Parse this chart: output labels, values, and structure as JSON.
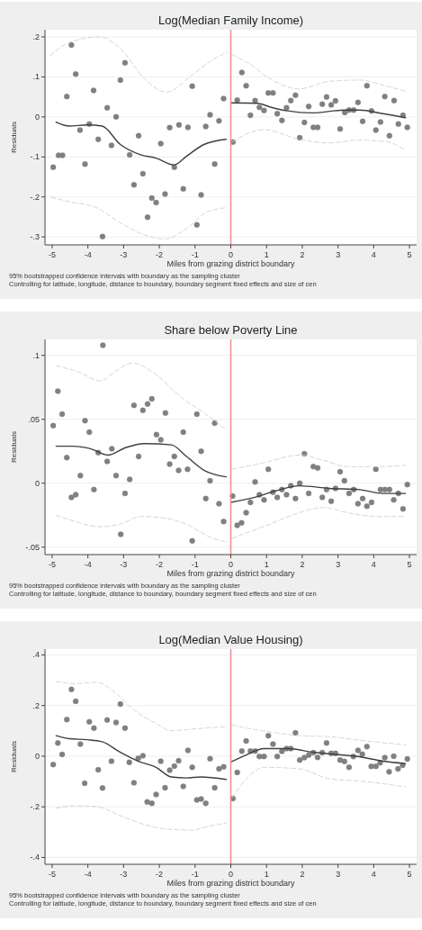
{
  "chart_data": [
    {
      "type": "line",
      "title": "Log(Median Family Income)",
      "xlabel": "Miles from grazing district boundary",
      "ylabel": "Residuals",
      "xlim": [
        -5.2,
        5.2
      ],
      "ylim": [
        -0.32,
        0.218
      ],
      "xticks": [
        -5,
        -4,
        -3,
        -2,
        -1,
        0,
        1,
        2,
        3,
        4,
        5
      ],
      "yticks": [
        {
          "value": 0.2,
          "label": ".2"
        },
        {
          "value": 0.1,
          "label": ".1"
        },
        {
          "value": 0,
          "label": "0"
        },
        {
          "value": -0.1,
          "label": "-.1"
        },
        {
          "value": -0.2,
          "label": "-.2"
        },
        {
          "value": -0.3,
          "label": "-.3"
        }
      ],
      "grid": "y",
      "ref_lines": [
        {
          "axis": "x",
          "value": 0,
          "color": "#f08a8a"
        }
      ],
      "annotations": [
        "95% bootstrapped confidence intervals with boundary as the sampling cluster",
        "Controlling for latitude, longitude, distance to boundary, boundary segment fixed effects and size of cen"
      ],
      "series": [
        {
          "type": "scatter",
          "marker": "circle",
          "color": "#808080",
          "x": [
            -4.97,
            -4.82,
            -4.71,
            -4.59,
            -4.46,
            -4.34,
            -4.22,
            -4.08,
            -3.96,
            -3.84,
            -3.71,
            -3.59,
            -3.46,
            -3.34,
            -3.21,
            -3.09,
            -2.96,
            -2.83,
            -2.71,
            -2.58,
            -2.46,
            -2.33,
            -2.21,
            -2.09,
            -1.96,
            -1.84,
            -1.71,
            -1.58,
            -1.45,
            -1.33,
            -1.2,
            -1.08,
            -0.95,
            -0.83,
            -0.7,
            -0.58,
            -0.45,
            -0.33,
            -0.2,
            0.06,
            0.18,
            0.31,
            0.43,
            0.55,
            0.68,
            0.8,
            0.93,
            1.05,
            1.18,
            1.3,
            1.43,
            1.56,
            1.68,
            1.81,
            1.93,
            2.06,
            2.18,
            2.31,
            2.43,
            2.56,
            2.68,
            2.81,
            2.93,
            3.06,
            3.19,
            3.31,
            3.44,
            3.56,
            3.69,
            3.81,
            3.94,
            4.06,
            4.19,
            4.31,
            4.44,
            4.57,
            4.69,
            4.82,
            4.94
          ],
          "values": [
            -0.126,
            -0.096,
            -0.096,
            0.051,
            0.18,
            0.107,
            -0.033,
            -0.118,
            -0.018,
            0.066,
            -0.056,
            -0.299,
            0.023,
            -0.071,
            0,
            0.092,
            0.135,
            -0.095,
            -0.17,
            -0.047,
            -0.142,
            -0.251,
            -0.203,
            -0.214,
            -0.067,
            -0.193,
            -0.027,
            -0.126,
            -0.02,
            -0.18,
            -0.026,
            0.077,
            -0.27,
            -0.195,
            -0.024,
            0.005,
            -0.118,
            -0.01,
            0.046,
            -0.063,
            0.042,
            0.111,
            0.078,
            0.004,
            0.041,
            0.024,
            0.016,
            0.06,
            0.06,
            0.008,
            -0.009,
            0.023,
            0.041,
            0.054,
            -0.052,
            -0.014,
            0.026,
            -0.026,
            -0.026,
            0.032,
            0.05,
            0.03,
            0.04,
            -0.03,
            0.011,
            0.017,
            0.017,
            0.036,
            -0.011,
            0.078,
            0.015,
            -0.033,
            -0.013,
            0.051,
            -0.047,
            0.041,
            -0.018,
            0.004,
            -0.026
          ]
        },
        {
          "type": "line",
          "line_style": "solid",
          "color": "#404040",
          "x": [
            -4.89,
            -4.52,
            -4.01,
            -3.6,
            -3.09,
            -2.51,
            -2.09,
            -1.59,
            -1.25,
            -0.75,
            -0.13
          ],
          "values": [
            -0.013,
            -0.023,
            -0.02,
            -0.023,
            -0.069,
            -0.095,
            -0.103,
            -0.12,
            -0.099,
            -0.069,
            -0.056
          ]
        },
        {
          "type": "line",
          "line_style": "solid",
          "color": "#404040",
          "x": [
            0,
            0.75,
            1.09,
            1.59,
            2.26,
            3.18,
            3.6,
            4.26,
            4.89
          ],
          "values": [
            0.035,
            0.034,
            0.025,
            0.015,
            0.01,
            0.017,
            0.017,
            0.008,
            -0.002
          ]
        },
        {
          "type": "line",
          "line_style": "dashed",
          "color": "#d0d0d0",
          "x": [
            -5.06,
            -4.52,
            -3.68,
            -3.09,
            -2.42,
            -1.8,
            -1.09,
            -0.59,
            -0.08
          ],
          "values": [
            0.153,
            0.186,
            0.2,
            0.171,
            0.096,
            0.062,
            0.104,
            0.138,
            0.162
          ]
        },
        {
          "type": "line",
          "line_style": "dashed",
          "color": "#d0d0d0",
          "x": [
            -5.02,
            -4.52,
            -3.76,
            -3.09,
            -2.42,
            -1.84,
            -1.25,
            -0.67,
            -0.13
          ],
          "values": [
            -0.201,
            -0.212,
            -0.227,
            -0.265,
            -0.295,
            -0.305,
            -0.28,
            -0.238,
            -0.227
          ]
        },
        {
          "type": "line",
          "line_style": "dashed",
          "color": "#d0d0d0",
          "x": [
            0.04,
            0.5,
            1.09,
            1.92,
            2.76,
            3.6,
            4.35,
            4.89
          ],
          "values": [
            0.156,
            0.134,
            0.096,
            0.07,
            0.089,
            0.092,
            0.077,
            0.065
          ]
        },
        {
          "type": "line",
          "line_style": "dashed",
          "color": "#d0d0d0",
          "x": [
            0.04,
            0.92,
            1.92,
            2.76,
            3.6,
            4.35,
            4.89
          ],
          "values": [
            -0.062,
            -0.032,
            -0.056,
            -0.065,
            -0.058,
            -0.062,
            -0.083
          ]
        }
      ]
    },
    {
      "type": "line",
      "title": "Share below Poverty Line",
      "xlabel": "Miles from grazing district boundary",
      "ylabel": "Residuals",
      "xlim": [
        -5.2,
        5.2
      ],
      "ylim": [
        -0.0558,
        0.1125
      ],
      "xticks": [
        -5,
        -4,
        -3,
        -2,
        -1,
        0,
        1,
        2,
        3,
        4,
        5
      ],
      "yticks": [
        {
          "value": 0.1,
          "label": ".1"
        },
        {
          "value": 0.05,
          "label": ".05"
        },
        {
          "value": 0,
          "label": "0"
        },
        {
          "value": -0.05,
          "label": "-.05"
        }
      ],
      "grid": "y",
      "ref_lines": [
        {
          "axis": "x",
          "value": 0,
          "color": "#f08a8a"
        }
      ],
      "annotations": [
        "95% bootstrapped confidence intervals with boundary as the sampling cluster",
        "Controlling for latitude, longitude, distance to boundary, boundary segment fixed effects and size of cen"
      ],
      "series": [
        {
          "type": "scatter",
          "marker": "circle",
          "color": "#808080",
          "x": [
            -4.97,
            -4.84,
            -4.72,
            -4.59,
            -4.46,
            -4.34,
            -4.21,
            -4.08,
            -3.96,
            -3.83,
            -3.71,
            -3.58,
            -3.46,
            -3.33,
            -3.21,
            -3.08,
            -2.96,
            -2.83,
            -2.71,
            -2.58,
            -2.46,
            -2.33,
            -2.21,
            -2.08,
            -1.96,
            -1.83,
            -1.71,
            -1.58,
            -1.46,
            -1.33,
            -1.21,
            -1.08,
            -0.95,
            -0.83,
            -0.7,
            -0.58,
            -0.45,
            -0.33,
            -0.2,
            0.05,
            0.18,
            0.3,
            0.43,
            0.55,
            0.68,
            0.8,
            0.93,
            1.05,
            1.18,
            1.3,
            1.43,
            1.56,
            1.68,
            1.81,
            1.93,
            2.06,
            2.18,
            2.31,
            2.43,
            2.56,
            2.68,
            2.81,
            2.93,
            3.06,
            3.18,
            3.31,
            3.44,
            3.56,
            3.69,
            3.81,
            3.94,
            4.06,
            4.19,
            4.31,
            4.44,
            4.56,
            4.69,
            4.82,
            4.94
          ],
          "values": [
            0.045,
            0.072,
            0.054,
            0.02,
            -0.011,
            -0.009,
            0.006,
            0.049,
            0.04,
            -0.005,
            0.024,
            0.108,
            0.017,
            0.027,
            0.006,
            -0.04,
            -0.008,
            0.003,
            0.061,
            0.021,
            0.057,
            0.062,
            0.066,
            0.038,
            0.034,
            0.055,
            0.015,
            0.021,
            0.01,
            0.04,
            0.011,
            -0.045,
            0.054,
            0.025,
            -0.012,
            0.002,
            0.047,
            -0.016,
            -0.03,
            -0.01,
            -0.033,
            -0.031,
            -0.023,
            -0.015,
            0.001,
            -0.009,
            -0.013,
            0.011,
            -0.007,
            -0.011,
            -0.005,
            -0.009,
            -0.002,
            -0.012,
            0,
            0.023,
            -0.008,
            0.013,
            0.012,
            -0.011,
            -0.005,
            -0.014,
            -0.004,
            0.009,
            0.002,
            -0.008,
            -0.005,
            -0.016,
            -0.012,
            -0.018,
            -0.015,
            0.011,
            -0.005,
            -0.005,
            -0.005,
            -0.013,
            -0.008,
            -0.02,
            -0.001
          ]
        },
        {
          "type": "line",
          "line_style": "solid",
          "color": "#404040",
          "x": [
            -4.89,
            -4.43,
            -3.93,
            -3.44,
            -2.93,
            -2.42,
            -1.66,
            -1.24,
            -0.74,
            -0.13
          ],
          "values": [
            0.029,
            0.029,
            0.027,
            0.022,
            0.028,
            0.031,
            0.03,
            0.021,
            0.01,
            0.005
          ]
        },
        {
          "type": "line",
          "line_style": "solid",
          "color": "#404040",
          "x": [
            0,
            0.67,
            1.25,
            1.92,
            2.76,
            3.6,
            4.26,
            4.89
          ],
          "values": [
            -0.015,
            -0.011,
            -0.006,
            -0.002,
            -0.004,
            -0.005,
            -0.008,
            -0.008
          ]
        },
        {
          "type": "line",
          "line_style": "dashed",
          "color": "#d0d0d0",
          "x": [
            -4.89,
            -4.26,
            -3.64,
            -3.26,
            -2.76,
            -2.09,
            -1.42,
            -0.75,
            -0.13
          ],
          "values": [
            0.092,
            0.087,
            0.08,
            0.087,
            0.094,
            0.085,
            0.068,
            0.055,
            0.042
          ]
        },
        {
          "type": "line",
          "line_style": "dashed",
          "color": "#d0d0d0",
          "x": [
            -4.89,
            -4.35,
            -3.68,
            -3.09,
            -2.51,
            -1.92,
            -1.25,
            -0.59,
            -0.13
          ],
          "values": [
            -0.025,
            -0.03,
            -0.034,
            -0.032,
            -0.026,
            -0.027,
            -0.032,
            -0.042,
            -0.046
          ]
        },
        {
          "type": "line",
          "line_style": "dashed",
          "color": "#d0d0d0",
          "x": [
            0.04,
            0.92,
            1.92,
            2.59,
            3.26,
            4.1,
            4.89
          ],
          "values": [
            0.011,
            0.016,
            0.022,
            0.018,
            0.013,
            0.013,
            0.014
          ]
        },
        {
          "type": "line",
          "line_style": "dashed",
          "color": "#d0d0d0",
          "x": [
            0.04,
            1.09,
            1.92,
            2.59,
            3.26,
            4.1,
            4.89
          ],
          "values": [
            -0.043,
            -0.032,
            -0.023,
            -0.019,
            -0.023,
            -0.026,
            -0.026
          ]
        }
      ]
    },
    {
      "type": "line",
      "title": "Log(Median Value Housing)",
      "xlabel": "Miles from grazing district boundary",
      "ylabel": "Residuals",
      "xlim": [
        -5.2,
        5.2
      ],
      "ylim": [
        -0.427,
        0.423
      ],
      "xticks": [
        -5,
        -4,
        -3,
        -2,
        -1,
        0,
        1,
        2,
        3,
        4,
        5
      ],
      "yticks": [
        {
          "value": 0.4,
          "label": ".4"
        },
        {
          "value": 0.2,
          "label": ".2"
        },
        {
          "value": 0,
          "label": "0"
        },
        {
          "value": -0.2,
          "label": "-.2"
        },
        {
          "value": -0.4,
          "label": "-.4"
        }
      ],
      "grid": "y",
      "ref_lines": [
        {
          "axis": "x",
          "value": 0,
          "color": "#f08a8a"
        }
      ],
      "annotations": [
        "95% bootstrapped confidence intervals with boundary as the sampling cluster",
        "Controlling for latitude, longitude, distance to boundary, boundary segment fixed effects and size of cen"
      ],
      "series": [
        {
          "type": "scatter",
          "marker": "circle",
          "color": "#808080",
          "x": [
            -4.97,
            -4.84,
            -4.72,
            -4.59,
            -4.46,
            -4.34,
            -4.21,
            -4.09,
            -3.96,
            -3.83,
            -3.71,
            -3.59,
            -3.46,
            -3.34,
            -3.21,
            -3.09,
            -2.96,
            -2.84,
            -2.71,
            -2.59,
            -2.46,
            -2.34,
            -2.21,
            -2.09,
            -1.96,
            -1.84,
            -1.71,
            -1.58,
            -1.46,
            -1.33,
            -1.2,
            -1.08,
            -0.95,
            -0.83,
            -0.7,
            -0.58,
            -0.45,
            -0.33,
            -0.2,
            0.06,
            0.18,
            0.31,
            0.43,
            0.55,
            0.68,
            0.8,
            0.93,
            1.05,
            1.18,
            1.3,
            1.43,
            1.56,
            1.68,
            1.81,
            1.93,
            2.06,
            2.18,
            2.31,
            2.43,
            2.56,
            2.68,
            2.81,
            2.93,
            3.06,
            3.18,
            3.31,
            3.43,
            3.56,
            3.68,
            3.81,
            3.93,
            4.06,
            4.18,
            4.31,
            4.43,
            4.56,
            4.68,
            4.81,
            4.94
          ],
          "values": [
            -0.033,
            0.052,
            0.007,
            0.145,
            0.264,
            0.217,
            0.048,
            -0.107,
            0.136,
            0.111,
            -0.054,
            -0.126,
            0.143,
            -0.02,
            0.133,
            0.206,
            0.111,
            -0.024,
            -0.105,
            -0.008,
            0.002,
            -0.181,
            -0.186,
            -0.151,
            -0.02,
            -0.125,
            -0.055,
            -0.039,
            -0.018,
            -0.119,
            0.023,
            -0.044,
            -0.173,
            -0.169,
            -0.186,
            -0.01,
            -0.125,
            -0.05,
            -0.042,
            -0.167,
            -0.064,
            0.02,
            0.06,
            0.02,
            0.02,
            -0.001,
            -0.001,
            0.081,
            0.048,
            -0.001,
            0.019,
            0.03,
            0.03,
            0.092,
            -0.015,
            -0.006,
            0.004,
            0.014,
            -0.005,
            0.014,
            0.052,
            0.011,
            0.011,
            -0.015,
            -0.021,
            -0.044,
            -0.001,
            0.023,
            0.008,
            0.038,
            -0.04,
            -0.04,
            -0.026,
            -0.006,
            -0.062,
            0,
            -0.05,
            -0.036,
            -0.011
          ]
        },
        {
          "type": "line",
          "line_style": "solid",
          "color": "#404040",
          "x": [
            -4.89,
            -4.52,
            -4.01,
            -3.6,
            -3.09,
            -2.59,
            -2.09,
            -1.67,
            -1.25,
            -0.84,
            -0.13
          ],
          "values": [
            0.081,
            0.069,
            0.065,
            0.057,
            0.015,
            -0.02,
            -0.044,
            -0.082,
            -0.086,
            -0.082,
            -0.092
          ]
        },
        {
          "type": "line",
          "line_style": "solid",
          "color": "#404040",
          "x": [
            0,
            0.42,
            0.92,
            1.59,
            2.34,
            2.93,
            3.6,
            4.26,
            4.89
          ],
          "values": [
            -0.023,
            0.004,
            0.03,
            0.03,
            0.015,
            0.007,
            -0.002,
            -0.02,
            -0.029
          ]
        },
        {
          "type": "line",
          "line_style": "dashed",
          "color": "#d0d0d0",
          "x": [
            -4.89,
            -4.35,
            -3.76,
            -3.26,
            -2.76,
            -2.09,
            -1.67,
            -1,
            -0.13
          ],
          "values": [
            0.295,
            0.287,
            0.292,
            0.254,
            0.188,
            0.129,
            0.101,
            0.108,
            0.117
          ]
        },
        {
          "type": "line",
          "line_style": "dashed",
          "color": "#d0d0d0",
          "x": [
            -4.89,
            -4.35,
            -3.76,
            -3.09,
            -2.42,
            -1.76,
            -1.09,
            -0.59,
            -0.13
          ],
          "values": [
            -0.205,
            -0.196,
            -0.199,
            -0.235,
            -0.27,
            -0.288,
            -0.292,
            -0.276,
            -0.264
          ]
        },
        {
          "type": "line",
          "line_style": "dashed",
          "color": "#d0d0d0",
          "x": [
            0.04,
            0.67,
            1.25,
            1.92,
            2.76,
            3.6,
            4.89
          ],
          "values": [
            0.123,
            0.105,
            0.093,
            0.081,
            0.077,
            0.063,
            0.045
          ]
        },
        {
          "type": "line",
          "line_style": "dashed",
          "color": "#d0d0d0",
          "x": [
            0.04,
            0.42,
            0.92,
            1.92,
            2.76,
            3.6,
            4.89
          ],
          "values": [
            -0.163,
            -0.092,
            -0.044,
            -0.05,
            -0.089,
            -0.098,
            -0.121
          ]
        }
      ]
    }
  ]
}
